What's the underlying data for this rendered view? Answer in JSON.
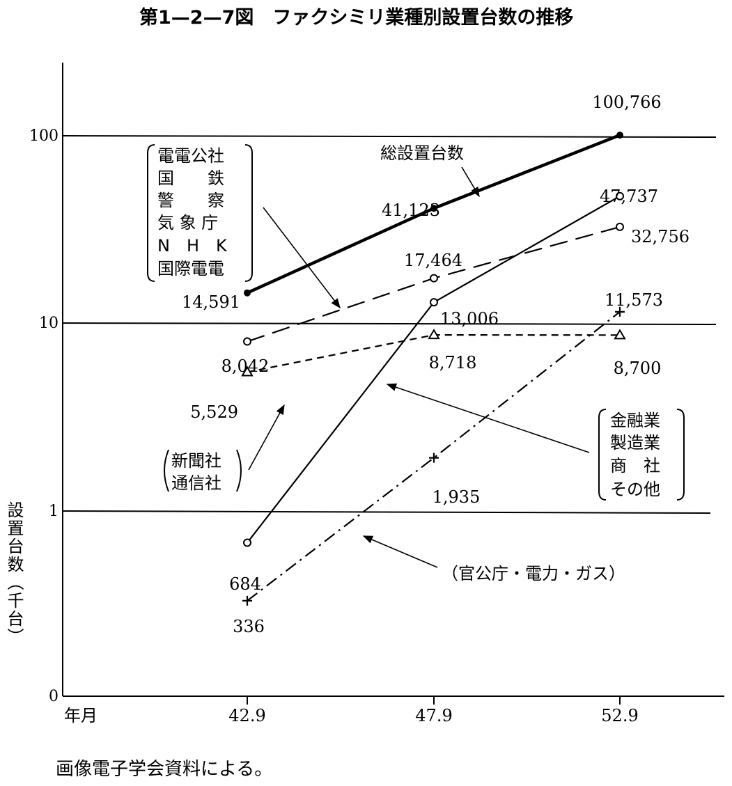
{
  "title": "第1—2—7図　ファクシミリ業種別設置台数の推移",
  "source_note": "画像電子学会資料による。",
  "chart_data": {
    "type": "line",
    "title": "第1—2—7図　ファクシミリ業種別設置台数の推移",
    "xlabel": "年月",
    "ylabel": "設置台数（千台）",
    "y_scale": "log",
    "y_ticks": [
      "0",
      "1",
      "10",
      "100"
    ],
    "categories": [
      "42.9",
      "47.9",
      "52.9"
    ],
    "grid": "horizontal lines at 1, 10, 100",
    "legend": "annotations with arrows",
    "series": [
      {
        "name": "総設置台数",
        "style": "solid-thick, filled dots",
        "values": [
          14591,
          41123,
          100766
        ],
        "labels": [
          "14,591",
          "41,123",
          "100,766"
        ]
      },
      {
        "name": "電電公社・国鉄・警察・気象庁・NHK・国際電電",
        "style": "long dash, open circles",
        "values": [
          8042,
          17464,
          32756
        ],
        "labels": [
          "8,042",
          "17,464",
          "32,756"
        ]
      },
      {
        "name": "新聞社・通信社",
        "style": "short dash, triangles",
        "values": [
          5529,
          8718,
          8700
        ],
        "labels": [
          "5,529",
          "8,718",
          "8,700"
        ]
      },
      {
        "name": "金融業・製造業・商社・その他",
        "style": "solid thin, open circles",
        "values": [
          684,
          13006,
          47737
        ],
        "labels": [
          "684",
          "13,006",
          "47,737"
        ]
      },
      {
        "name": "官公庁・電力・ガス",
        "style": "dash-dot, plus markers",
        "values": [
          336,
          1935,
          11573
        ],
        "labels": [
          "336",
          "1,935",
          "11,573"
        ]
      }
    ]
  },
  "annotations": {
    "total": "総設置台数",
    "public_group": [
      "電電公社",
      "国　　鉄",
      "警　　察",
      "気 象 庁",
      "N　H　K",
      "国際電電"
    ],
    "press_group": [
      "新聞社",
      "通信社"
    ],
    "business_group": [
      "金融業",
      "製造業",
      "商　社",
      "その他"
    ],
    "gov_group": "（官公庁・電力・ガス）"
  }
}
